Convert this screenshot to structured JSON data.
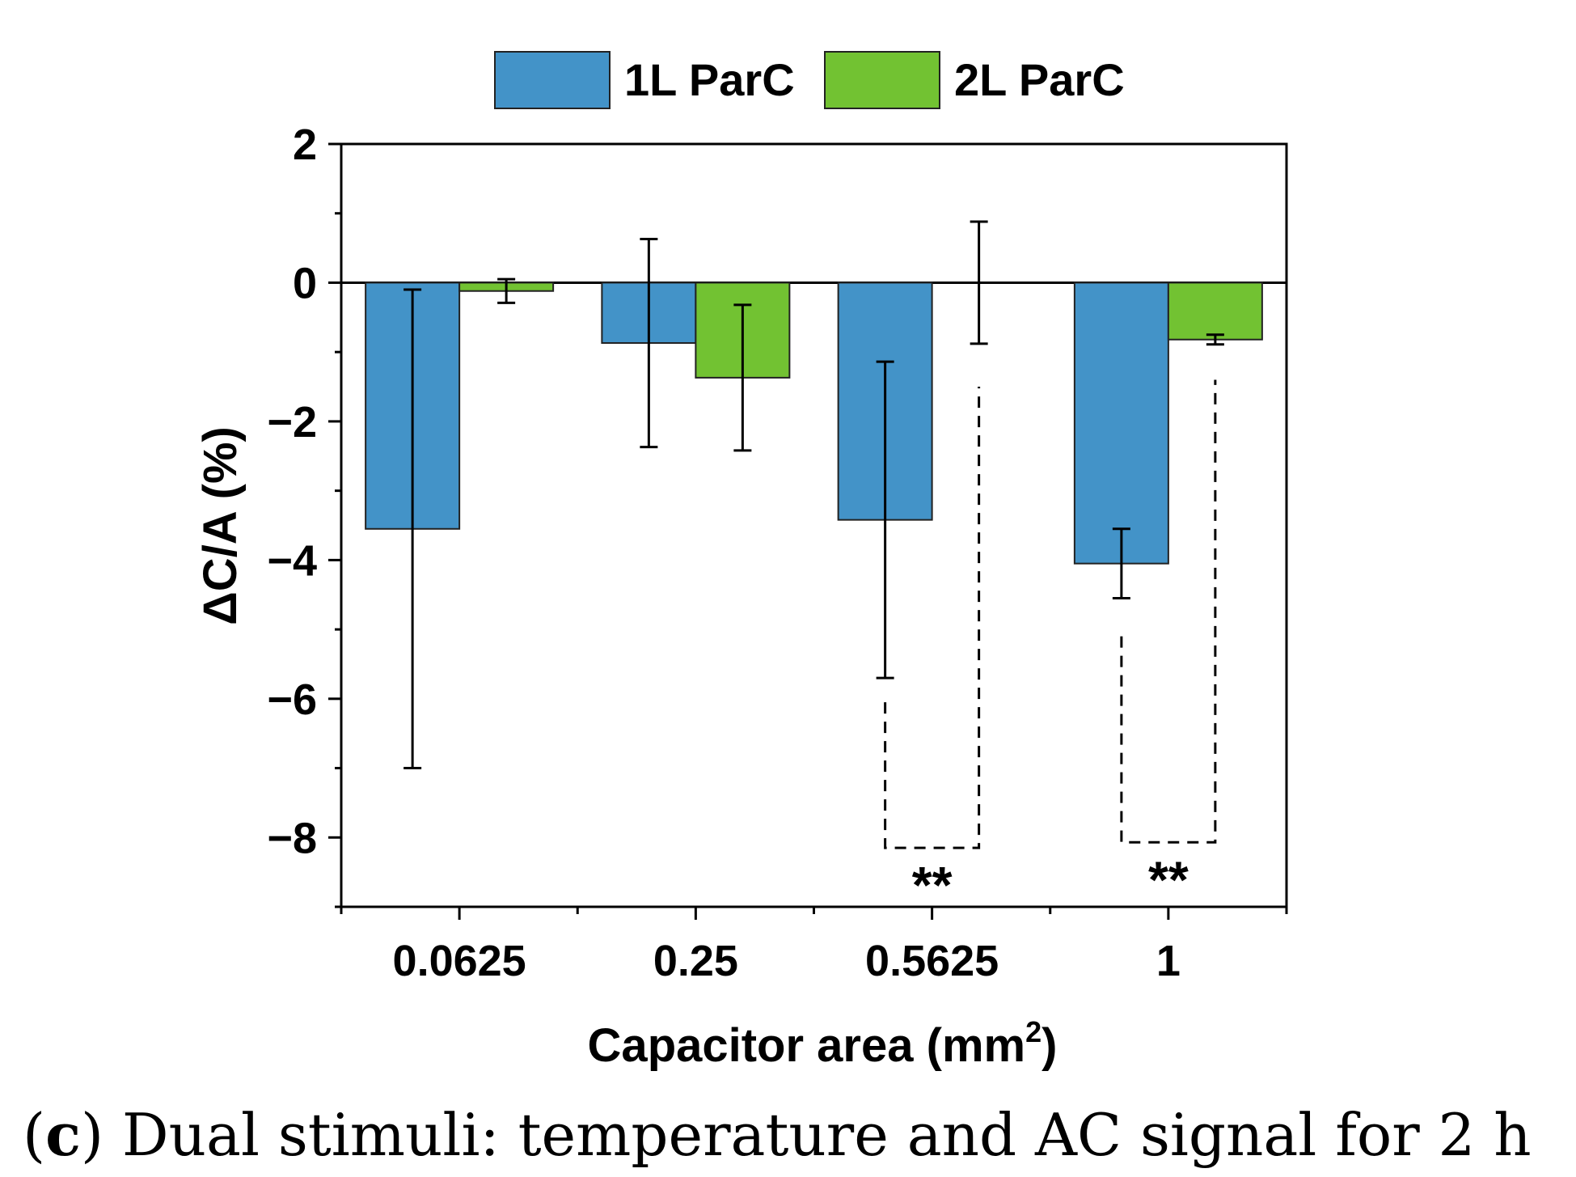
{
  "chart_data": {
    "type": "bar",
    "categories": [
      "0.0625",
      "0.25",
      "0.5625",
      "1"
    ],
    "series": [
      {
        "name": "1L ParC",
        "color": "#4393c8",
        "values": [
          -3.55,
          -0.87,
          -3.42,
          -4.05
        ],
        "errors": [
          3.45,
          1.5,
          2.28,
          0.5
        ]
      },
      {
        "name": "2L ParC",
        "color": "#72c232",
        "values": [
          -0.12,
          -1.37,
          0.0,
          -0.82
        ],
        "errors": [
          0.17,
          1.05,
          0.88,
          0.07
        ]
      }
    ],
    "xlabel": "Capacitor area (mm",
    "xlabel_superscript": "2",
    "xlabel_suffix": ")",
    "ylabel": "ΔC/A (%)",
    "ylim": [
      -9,
      2
    ],
    "yticks": [
      2,
      0,
      -2,
      -4,
      -6,
      -8
    ],
    "ytick_labels": [
      "2",
      "0",
      "−2",
      "−4",
      "−6",
      "−8"
    ],
    "legend_position": "top-center",
    "significance": [
      {
        "category": "0.5625",
        "label": "**",
        "bracket_bottom": -8.15,
        "left_top": -6.05,
        "right_top": -1.5
      },
      {
        "category": "1",
        "label": "**",
        "bracket_bottom": -8.07,
        "left_top": -5.1,
        "right_top": -1.4
      }
    ]
  },
  "caption": {
    "letter": "c",
    "text": "Dual stimuli: temperature and AC signal for 2 h"
  }
}
